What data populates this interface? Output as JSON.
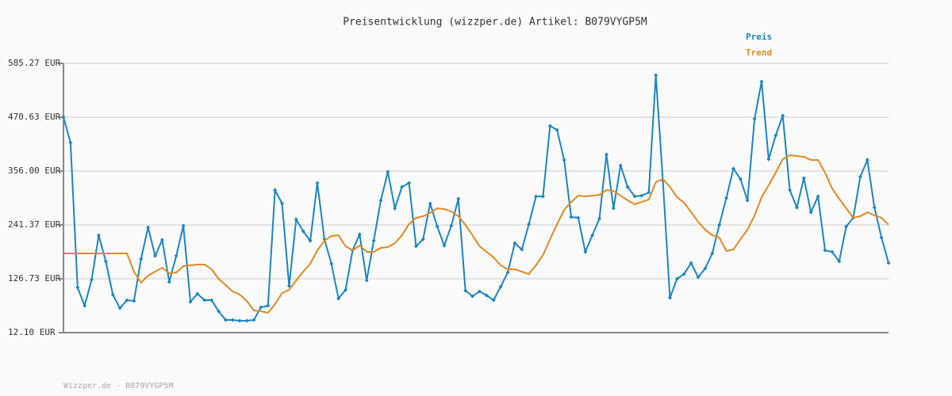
{
  "chart_data": {
    "type": "line",
    "title": "Preisentwicklung (wizzper.de) Artikel: B079VYGP5M",
    "footer": "Wizzper.de - B079VYGP5M",
    "ylim": [
      12.1,
      585.27
    ],
    "yticks": [
      {
        "value": 12.1,
        "label": "12.10 EUR"
      },
      {
        "value": 126.73,
        "label": "126.73 EUR"
      },
      {
        "value": 241.37,
        "label": "241.37 EUR"
      },
      {
        "value": 356.0,
        "label": "356.00 EUR"
      },
      {
        "value": 470.63,
        "label": "470.63 EUR"
      },
      {
        "value": 585.27,
        "label": "585.27 EUR"
      }
    ],
    "grid": true,
    "legend": "top-right",
    "series": [
      {
        "name": "Preis",
        "color": "#1b86c2",
        "markers": true,
        "values": [
          470.6,
          416.7,
          108.2,
          69.4,
          125.0,
          219.5,
          163.8,
          93.0,
          64.4,
          81.2,
          79.5,
          168.9,
          236.3,
          175.6,
          209.3,
          120.0,
          175.6,
          239.7,
          77.8,
          94.7,
          81.2,
          81.2,
          57.6,
          39.1,
          39.1,
          37.4,
          37.4,
          39.1,
          66.0,
          69.4,
          315.5,
          286.9,
          111.6,
          253.2,
          227.9,
          207.7,
          330.7,
          211.0,
          158.8,
          84.6,
          103.1,
          187.4,
          221.1,
          123.4,
          207.7,
          293.6,
          354.3,
          276.8,
          322.3,
          330.7,
          196.0,
          211.0,
          286.9,
          238.0,
          197.5,
          239.7,
          297.0,
          101.4,
          89.6,
          99.8,
          91.3,
          81.2,
          109.9,
          140.2,
          202.6,
          189.1,
          243.1,
          302.1,
          302.1,
          452.1,
          443.7,
          379.6,
          258.2,
          256.6,
          184.1,
          219.5,
          254.9,
          391.4,
          276.8,
          367.8,
          322.3,
          302.1,
          303.7,
          310.5,
          560.0,
          335.8,
          86.3,
          126.7,
          136.8,
          160.4,
          130.1,
          148.6,
          180.7,
          241.4,
          298.7,
          361.1,
          339.1,
          293.6,
          467.3,
          546.5,
          381.3,
          431.9,
          474.0,
          315.5,
          278.5,
          340.8,
          268.4,
          302.1,
          187.4,
          184.1,
          163.8,
          238.0,
          256.6,
          344.2,
          379.6,
          278.5,
          214.4,
          160.4
        ]
      },
      {
        "name": "Trend",
        "color": "#e08a22",
        "markers": false,
        "values": [
          180.7,
          180.7,
          180.7,
          180.7,
          180.7,
          180.7,
          180.7,
          180.7,
          180.7,
          180.7,
          141.9,
          118.3,
          133.5,
          141.9,
          150.3,
          138.5,
          140.2,
          153.7,
          155.4,
          157.1,
          157.1,
          147.0,
          126.7,
          113.2,
          99.8,
          93.0,
          79.5,
          59.3,
          57.6,
          54.2,
          72.8,
          96.4,
          103.1,
          123.4,
          141.9,
          158.8,
          187.4,
          207.7,
          217.8,
          219.5,
          196.0,
          187.4,
          197.5,
          184.1,
          184.1,
          192.5,
          194.2,
          202.6,
          219.5,
          243.1,
          256.6,
          259.9,
          266.7,
          276.8,
          275.1,
          270.0,
          259.9,
          241.4,
          219.5,
          196.0,
          184.1,
          172.3,
          155.4,
          147.0,
          147.0,
          141.9,
          136.8,
          155.4,
          177.3,
          211.0,
          243.1,
          273.4,
          290.3,
          303.7,
          302.1,
          303.7,
          305.4,
          315.5,
          313.9,
          303.7,
          293.6,
          285.2,
          290.3,
          295.3,
          332.4,
          339.1,
          322.3,
          300.4,
          288.6,
          268.4,
          248.1,
          231.3,
          219.5,
          214.4,
          185.7,
          189.1,
          211.0,
          231.3,
          261.6,
          300.4,
          325.7,
          352.6,
          381.3,
          389.7,
          388.0,
          386.3,
          379.6,
          379.6,
          352.6,
          318.9,
          297.0,
          276.8,
          256.6,
          259.9,
          268.4,
          261.6,
          256.6,
          241.4
        ]
      }
    ]
  }
}
